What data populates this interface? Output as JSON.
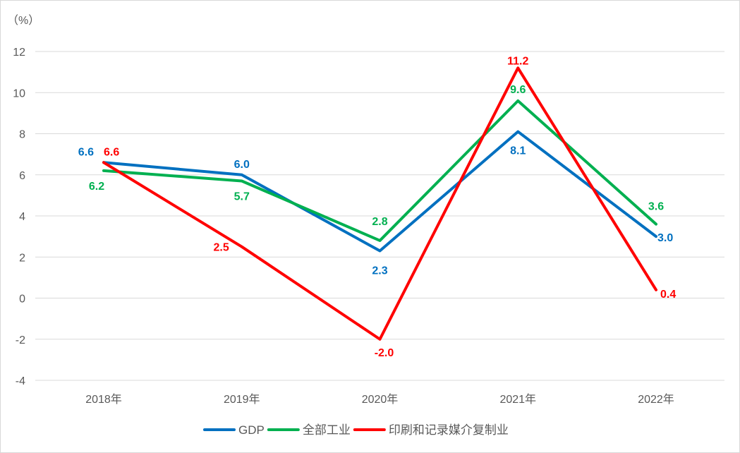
{
  "chart_data": {
    "type": "line",
    "unit_label": "（%）",
    "categories": [
      "2018年",
      "2019年",
      "2020年",
      "2021年",
      "2022年"
    ],
    "ylim": [
      -4,
      12
    ],
    "yticks": [
      "12",
      "10",
      "8",
      "6",
      "4",
      "2",
      "0",
      "-2",
      "-4"
    ],
    "ytick_values": [
      12,
      10,
      8,
      6,
      4,
      2,
      0,
      -2,
      -4
    ],
    "grid": true,
    "legend_position": "bottom",
    "series": [
      {
        "name": "GDP",
        "color": "#0070C0",
        "values": [
          6.6,
          6.0,
          2.3,
          8.1,
          3.0
        ],
        "labels": [
          "6.6",
          "6.0",
          "2.3",
          "8.1",
          "3.0"
        ]
      },
      {
        "name": "全部工业",
        "color": "#00B050",
        "values": [
          6.2,
          5.7,
          2.8,
          9.6,
          3.6
        ],
        "labels": [
          "6.2",
          "5.7",
          "2.8",
          "9.6",
          "3.6"
        ]
      },
      {
        "name": "印刷和记录媒介复制业",
        "color": "#FF0000",
        "values": [
          6.6,
          2.5,
          -2.0,
          11.2,
          0.4
        ],
        "labels": [
          "6.6",
          "2.5",
          "-2.0",
          "11.2",
          "0.4"
        ]
      }
    ]
  }
}
